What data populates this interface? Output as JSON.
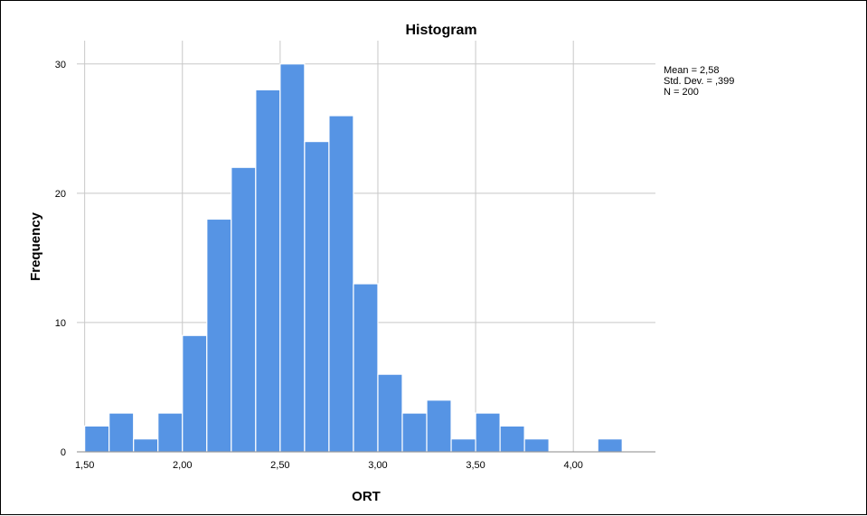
{
  "chart_data": {
    "type": "bar",
    "title": "Histogram",
    "xlabel": "ORT",
    "ylabel": "Frequency",
    "bin_width": 0.125,
    "bins_start": [
      1.5,
      1.625,
      1.75,
      1.875,
      2.0,
      2.125,
      2.25,
      2.375,
      2.5,
      2.625,
      2.75,
      2.875,
      3.0,
      3.125,
      3.25,
      3.375,
      3.5,
      3.625,
      3.75,
      3.875,
      4.0,
      4.125
    ],
    "values": [
      2,
      3,
      1,
      3,
      9,
      18,
      22,
      28,
      30,
      24,
      26,
      13,
      6,
      3,
      4,
      1,
      3,
      2,
      1,
      0,
      0,
      1
    ],
    "xlim": [
      1.46,
      4.42
    ],
    "ylim": [
      0,
      30
    ],
    "x_ticks": [
      1.5,
      2.0,
      2.5,
      3.0,
      3.5,
      4.0
    ],
    "x_tick_labels": [
      "1,50",
      "2,00",
      "2,50",
      "3,00",
      "3,50",
      "4,00"
    ],
    "y_ticks": [
      0,
      10,
      20,
      30
    ],
    "y_tick_labels": [
      "0",
      "10",
      "20",
      "30"
    ],
    "grid": true,
    "bar_color": "#5694e4",
    "stats": {
      "mean_line": "Mean = 2,58",
      "std_line": "Std. Dev. = ,399",
      "n_line": "N = 200"
    }
  }
}
